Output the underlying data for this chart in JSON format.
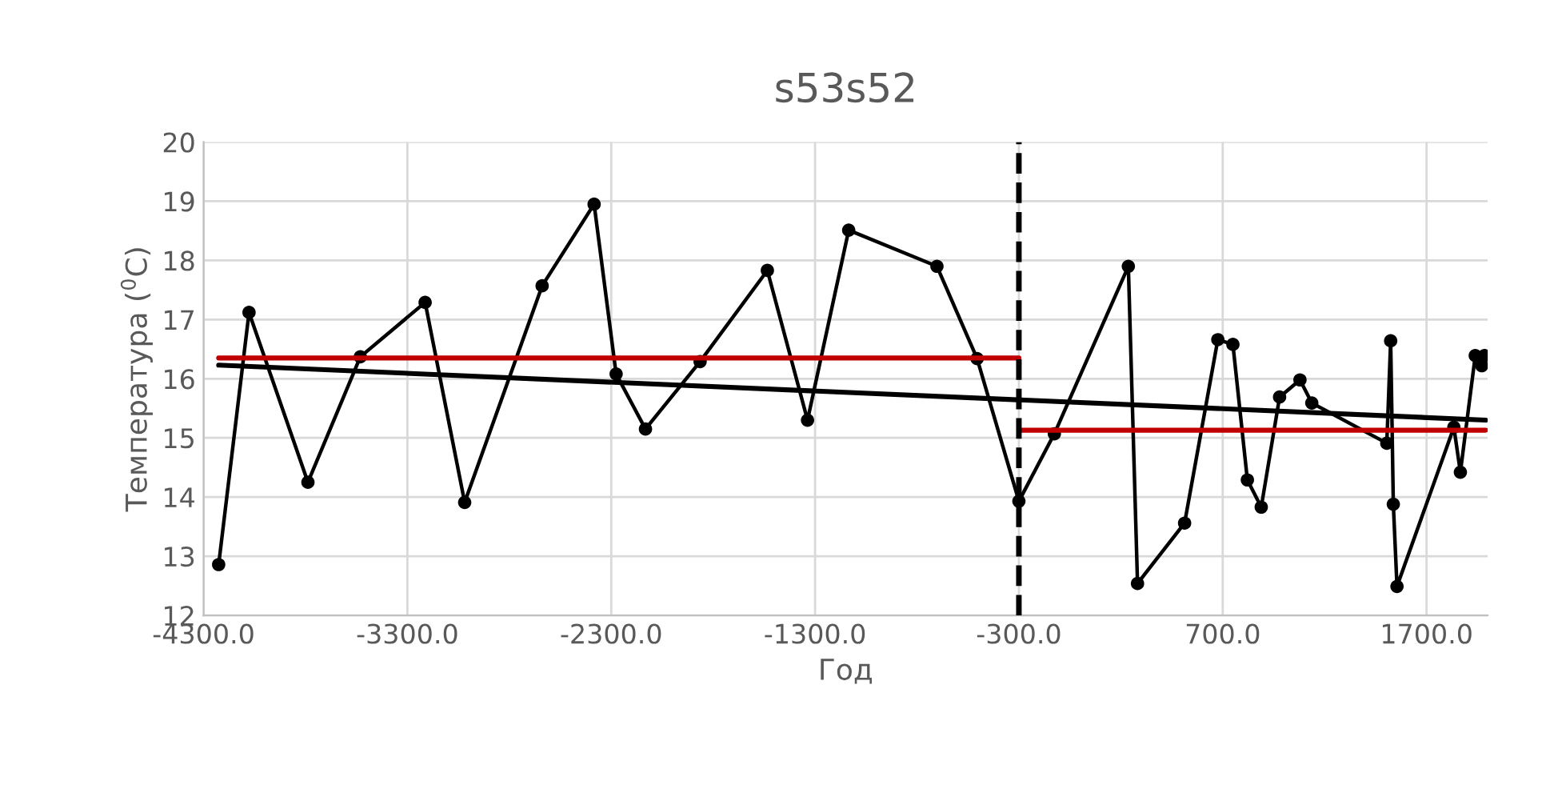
{
  "chart_data": {
    "type": "line",
    "title": "s53s52",
    "xlabel": "Год",
    "ylabel": "Температура ($^{0}$C)",
    "xlim": [
      -4300,
      2000
    ],
    "ylim": [
      12,
      20
    ],
    "xticks": [
      {
        "value": -4300,
        "label": "-4300.0"
      },
      {
        "value": -3300,
        "label": "-3300.0"
      },
      {
        "value": -2300,
        "label": "-2300.0"
      },
      {
        "value": -1300,
        "label": "-1300.0"
      },
      {
        "value": -300,
        "label": "-300.0"
      },
      {
        "value": 700,
        "label": "700.0"
      },
      {
        "value": 1700,
        "label": "1700.0"
      }
    ],
    "yticks": [
      12,
      13,
      14,
      15,
      16,
      17,
      18,
      19,
      20
    ],
    "grid": true,
    "legend": false,
    "series": [
      {
        "color": "#000000",
        "marker": "circle",
        "x": [
          -4226,
          -4077,
          -3788,
          -3531,
          -3213,
          -3019,
          -2639,
          -2384,
          -2276,
          -2132,
          -1864,
          -1534,
          -1337,
          -1135,
          -702,
          -505,
          -300,
          -126,
          237,
          282,
          513,
          676,
          750,
          821,
          889,
          979,
          1079,
          1137,
          1505,
          1524,
          1537,
          1555,
          1834,
          1866,
          1939,
          1971,
          1984
        ],
        "values": [
          12.86,
          17.12,
          14.25,
          16.37,
          17.29,
          13.91,
          17.57,
          18.95,
          16.08,
          15.15,
          16.29,
          17.83,
          15.3,
          18.51,
          17.9,
          16.34,
          13.93,
          15.07,
          17.9,
          12.54,
          13.56,
          16.66,
          16.58,
          14.29,
          13.83,
          15.69,
          15.98,
          15.59,
          14.91,
          16.64,
          13.88,
          12.49,
          15.18,
          14.42,
          16.39,
          16.22,
          16.39
        ]
      },
      {
        "color": "#c00000",
        "marker": "none",
        "x": [
          -4226,
          -300
        ],
        "values": [
          16.35,
          16.35
        ]
      },
      {
        "color": "#c00000",
        "marker": "none",
        "x": [
          -300,
          1990
        ],
        "values": [
          15.13,
          15.13
        ]
      },
      {
        "color": "#000000",
        "marker": "none",
        "x": [
          -4226,
          1990
        ],
        "values": [
          16.23,
          15.3
        ]
      }
    ],
    "ref_lines": [
      {
        "axis": "x",
        "value": -300,
        "color": "#000000",
        "line_style": "dashed"
      }
    ]
  }
}
